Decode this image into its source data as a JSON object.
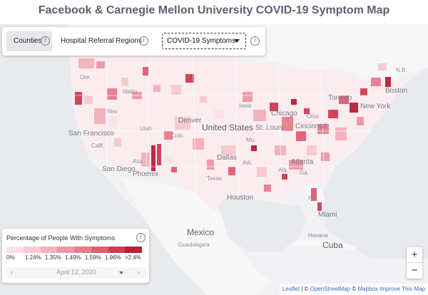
{
  "title": "Facebook & Carnegie Mellon University COVID-19 Symptom Map",
  "controls": {
    "tabs": [
      {
        "label": "Counties",
        "active": true
      },
      {
        "label": "Hospital Referral Regions",
        "active": false
      }
    ],
    "signal_select": {
      "value": "COVID-19 Symptoms"
    }
  },
  "legend": {
    "title": "Percentage of People With Symptoms",
    "colors": [
      "#fbe2e6",
      "#f7c9d1",
      "#f3b1bc",
      "#ee97a6",
      "#e77c8e",
      "#de5d73",
      "#cf3c55",
      "#b81f3a"
    ],
    "ticks": [
      "0%",
      "1.24%",
      "1.35%",
      "1.49%",
      "1.59%",
      "1.96%",
      ">2.4%"
    ],
    "date": "April 12, 2020"
  },
  "map_labels": {
    "countries": [
      "United States",
      "Mexico",
      "Cuba"
    ],
    "cities": [
      "San Francisco",
      "San Diego",
      "Phoenix",
      "Dallas",
      "Houston",
      "Atlanta",
      "Miami",
      "Toronto",
      "Boston",
      "New York",
      "Chicago",
      "Denver",
      "St. Louis",
      "Cincinnati",
      "Guadalajara",
      "Havana"
    ],
    "regions": [
      "Idaho",
      "Utah",
      "Calif.",
      "Ariz.",
      "Texas",
      "Fla.",
      "Ga.",
      "Ala.",
      "Ark.",
      "Mo.",
      "Ohio",
      "Iowa",
      "N.B.",
      "Nev.",
      "Ore.",
      "Colo."
    ]
  },
  "zoom": {
    "in_label": "+",
    "out_label": "−"
  },
  "attribution": {
    "leaflet": "Leaflet",
    "sep1": " | © ",
    "osm": "OpenStreetMap",
    "sep2": " © ",
    "mapbox": "Mapbox Improve This Map"
  }
}
